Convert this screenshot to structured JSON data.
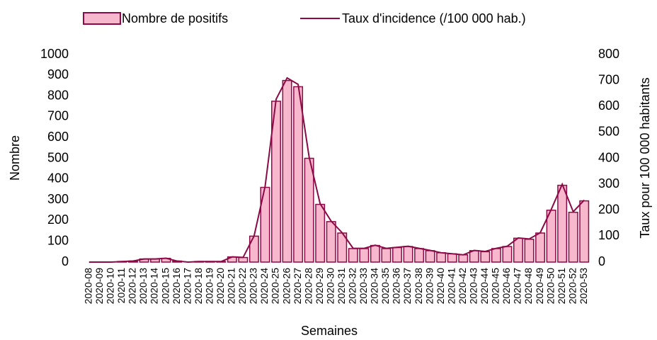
{
  "chart_data": {
    "type": "bar+line",
    "x_label": "Semaines",
    "y_label": "Nombre",
    "y2_label": "Taux pour 100 000 habitants",
    "categories": [
      "2020-08",
      "2020-09",
      "2020-10",
      "2020-11",
      "2020-12",
      "2020-13",
      "2020-14",
      "2020-15",
      "2020-16",
      "2020-17",
      "2020-18",
      "2020-19",
      "2020-20",
      "2020-21",
      "2020-22",
      "2020-23",
      "2020-24",
      "2020-25",
      "2020-26",
      "2020-27",
      "2020-28",
      "2020-29",
      "2020-30",
      "2020-31",
      "2020-32",
      "2020-33",
      "2020-34",
      "2020-35",
      "2020-36",
      "2020-37",
      "2020-38",
      "2020-39",
      "2020-40",
      "2020-41",
      "2020-42",
      "2020-43",
      "2020-44",
      "2020-45",
      "2020-46",
      "2020-47",
      "2020-48",
      "2020-49",
      "2020-50",
      "2020-51",
      "2020-52",
      "2020-53"
    ],
    "series": [
      {
        "name": "Nombre de positifs",
        "type": "bar",
        "color": "#f7b7cc",
        "edge_color": "#8b0a46",
        "values": [
          0,
          0,
          0,
          3,
          5,
          15,
          15,
          18,
          5,
          0,
          3,
          3,
          3,
          25,
          22,
          125,
          360,
          775,
          875,
          845,
          500,
          278,
          195,
          140,
          65,
          65,
          80,
          65,
          70,
          75,
          65,
          55,
          45,
          40,
          35,
          55,
          50,
          65,
          75,
          115,
          110,
          140,
          250,
          370,
          240,
          295
        ]
      },
      {
        "name": "Taux d'incidence (/100 000 hab.)",
        "type": "line",
        "axis": "y2",
        "color": "#8b0a46",
        "values": [
          0,
          0,
          0,
          2,
          4,
          12,
          12,
          15,
          4,
          0,
          2,
          2,
          2,
          20,
          18,
          101,
          292,
          628,
          710,
          685,
          405,
          225,
          158,
          113,
          53,
          53,
          65,
          53,
          57,
          61,
          53,
          45,
          36,
          32,
          28,
          45,
          41,
          53,
          61,
          93,
          89,
          113,
          203,
          300,
          194,
          239
        ]
      }
    ],
    "ylim": [
      0,
      1000
    ],
    "yticks": [
      0,
      100,
      200,
      300,
      400,
      500,
      600,
      700,
      800,
      900,
      1000
    ],
    "y2lim": [
      0,
      800
    ],
    "y2ticks": [
      0,
      100,
      200,
      300,
      400,
      500,
      600,
      700,
      800
    ]
  }
}
